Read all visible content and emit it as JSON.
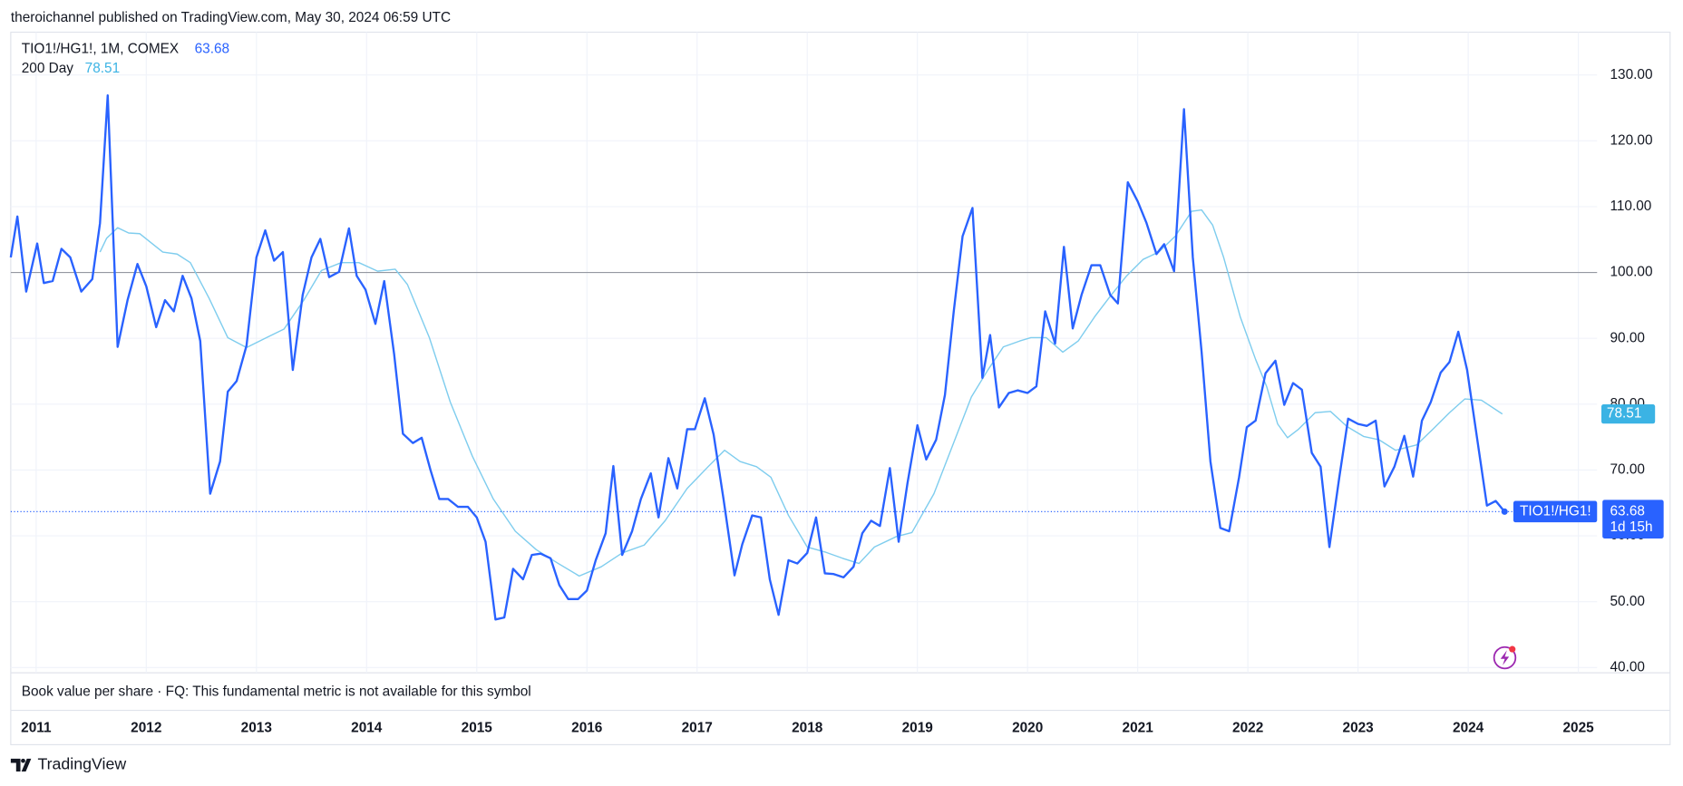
{
  "header": "theroichannel published on TradingView.com, May 30, 2024 06:59 UTC",
  "footer": "TradingView",
  "lower_pane": "Book value per share · FQ: This fundamental metric is not available for this symbol",
  "chart_data": {
    "type": "line",
    "symbol": "TIO1!/HG1!, 1M, COMEX",
    "short_symbol": "TIO1!/HG1!",
    "countdown": "1d 15h",
    "xlim": [
      2010.77,
      2025.17
    ],
    "ylim": [
      39.2,
      136.5
    ],
    "xticks": [
      2011,
      2012,
      2013,
      2014,
      2015,
      2016,
      2017,
      2018,
      2019,
      2020,
      2021,
      2022,
      2023,
      2024,
      2025
    ],
    "yticks": [
      {
        "value": 40,
        "label": "40.00"
      },
      {
        "value": 50,
        "label": "50.00"
      },
      {
        "value": 60,
        "label": "60.00"
      },
      {
        "value": 70,
        "label": "70.00"
      },
      {
        "value": 80,
        "label": "80.00"
      },
      {
        "value": 90,
        "label": "90.00"
      },
      {
        "value": 100,
        "label": "100.00"
      },
      {
        "value": 110,
        "label": "110.00"
      },
      {
        "value": 120,
        "label": "120.00"
      },
      {
        "value": 130,
        "label": "130.00"
      }
    ],
    "hline": 100,
    "grid": true,
    "series": [
      {
        "name": "TIO1!/HG1!",
        "color": "#2962ff",
        "x": [
          2010.77,
          2010.83,
          2010.91,
          2011.01,
          2011.07,
          2011.15,
          2011.23,
          2011.31,
          2011.41,
          2011.51,
          2011.58,
          2011.65,
          2011.74,
          2011.83,
          2011.92,
          2012.0,
          2012.09,
          2012.17,
          2012.25,
          2012.33,
          2012.41,
          2012.49,
          2012.58,
          2012.67,
          2012.74,
          2012.82,
          2012.91,
          2013.0,
          2013.08,
          2013.16,
          2013.24,
          2013.33,
          2013.42,
          2013.5,
          2013.58,
          2013.66,
          2013.75,
          2013.84,
          2013.91,
          2013.99,
          2014.08,
          2014.16,
          2014.25,
          2014.33,
          2014.42,
          2014.5,
          2014.58,
          2014.66,
          2014.74,
          2014.83,
          2014.92,
          2015.0,
          2015.08,
          2015.17,
          2015.25,
          2015.33,
          2015.42,
          2015.5,
          2015.58,
          2015.67,
          2015.75,
          2015.83,
          2015.92,
          2016.0,
          2016.08,
          2016.17,
          2016.24,
          2016.32,
          2016.41,
          2016.49,
          2016.58,
          2016.65,
          2016.74,
          2016.82,
          2016.91,
          2016.98,
          2017.07,
          2017.15,
          2017.24,
          2017.34,
          2017.41,
          2017.5,
          2017.58,
          2017.66,
          2017.74,
          2017.83,
          2017.91,
          2018.0,
          2018.08,
          2018.16,
          2018.24,
          2018.33,
          2018.42,
          2018.5,
          2018.58,
          2018.66,
          2018.75,
          2018.83,
          2018.91,
          2019.0,
          2019.08,
          2019.17,
          2019.25,
          2019.33,
          2019.41,
          2019.5,
          2019.59,
          2019.66,
          2019.74,
          2019.83,
          2019.91,
          2020.0,
          2020.08,
          2020.16,
          2020.25,
          2020.33,
          2020.41,
          2020.49,
          2020.58,
          2020.66,
          2020.75,
          2020.82,
          2020.91,
          2021.0,
          2021.08,
          2021.17,
          2021.24,
          2021.33,
          2021.42,
          2021.5,
          2021.58,
          2021.66,
          2021.75,
          2021.83,
          2021.92,
          2021.99,
          2022.07,
          2022.16,
          2022.25,
          2022.33,
          2022.41,
          2022.49,
          2022.58,
          2022.66,
          2022.74,
          2022.83,
          2022.91,
          2023.0,
          2023.08,
          2023.16,
          2023.24,
          2023.33,
          2023.42,
          2023.5,
          2023.58,
          2023.66,
          2023.75,
          2023.83,
          2023.91,
          2023.99,
          2024.08,
          2024.17,
          2024.25,
          2024.33
        ],
        "values": [
          102.3,
          108.5,
          97.1,
          104.4,
          98.4,
          98.7,
          103.6,
          102.3,
          97.1,
          99.0,
          107.5,
          126.9,
          88.7,
          95.8,
          101.3,
          97.9,
          91.7,
          95.8,
          94.1,
          99.5,
          96.1,
          89.6,
          66.4,
          71.3,
          81.9,
          83.5,
          88.9,
          102.3,
          106.4,
          101.8,
          103.1,
          85.2,
          96.6,
          102.3,
          105.1,
          99.3,
          100.1,
          106.7,
          99.5,
          97.4,
          92.2,
          98.7,
          87.6,
          75.5,
          74.1,
          74.9,
          70.0,
          65.6,
          65.6,
          64.4,
          64.4,
          62.8,
          59.1,
          47.3,
          47.6,
          55.0,
          53.4,
          57.1,
          57.3,
          56.6,
          52.5,
          50.4,
          50.4,
          51.7,
          56.3,
          60.4,
          70.6,
          57.1,
          60.7,
          65.6,
          69.5,
          62.8,
          71.8,
          67.2,
          76.2,
          76.2,
          80.9,
          75.4,
          65.6,
          54.0,
          58.7,
          63.1,
          62.8,
          53.4,
          48.0,
          56.3,
          55.8,
          57.4,
          62.8,
          54.3,
          54.2,
          53.7,
          55.3,
          60.4,
          62.3,
          61.5,
          70.3,
          59.1,
          68.0,
          76.8,
          71.6,
          74.6,
          81.4,
          94.1,
          105.5,
          109.8,
          84.0,
          90.5,
          79.5,
          81.7,
          82.1,
          81.7,
          82.7,
          94.1,
          89.2,
          103.9,
          91.5,
          96.6,
          101.1,
          101.1,
          96.6,
          95.3,
          113.7,
          110.8,
          107.5,
          102.8,
          104.3,
          100.2,
          124.8,
          102.3,
          87.9,
          71.3,
          61.2,
          60.7,
          68.9,
          76.5,
          77.5,
          84.7,
          86.6,
          79.9,
          83.2,
          82.2,
          72.6,
          70.5,
          58.3,
          68.9,
          77.8,
          77.0,
          76.7,
          77.5,
          67.5,
          70.5,
          75.2,
          69.0,
          77.5,
          80.3,
          84.8,
          86.4,
          91.0,
          85.2,
          74.9,
          64.6,
          65.3,
          63.68
        ]
      },
      {
        "name": "200 Day",
        "color": "#7fcdee",
        "label_color": "#3bb3e4",
        "x": [
          2011.58,
          2011.64,
          2011.74,
          2011.84,
          2011.94,
          2012.03,
          2012.15,
          2012.28,
          2012.4,
          2012.57,
          2012.74,
          2012.91,
          2013.09,
          2013.25,
          2013.43,
          2013.59,
          2013.77,
          2013.93,
          2014.1,
          2014.26,
          2014.37,
          2014.57,
          2014.76,
          2014.96,
          2015.15,
          2015.35,
          2015.54,
          2015.74,
          2015.93,
          2016.13,
          2016.32,
          2016.52,
          2016.71,
          2016.91,
          2017.1,
          2017.25,
          2017.39,
          2017.54,
          2017.67,
          2017.83,
          2018.0,
          2018.17,
          2018.32,
          2018.47,
          2018.61,
          2018.81,
          2018.95,
          2019.15,
          2019.34,
          2019.49,
          2019.64,
          2019.78,
          2019.93,
          2020.03,
          2020.17,
          2020.32,
          2020.46,
          2020.61,
          2020.76,
          2020.9,
          2021.05,
          2021.19,
          2021.34,
          2021.49,
          2021.58,
          2021.68,
          2021.78,
          2021.93,
          2022.07,
          2022.17,
          2022.27,
          2022.36,
          2022.46,
          2022.61,
          2022.75,
          2022.9,
          2023.05,
          2023.19,
          2023.34,
          2023.53,
          2023.68,
          2023.83,
          2023.97,
          2024.12,
          2024.31
        ],
        "values": [
          103.1,
          105.2,
          106.8,
          106.0,
          105.9,
          104.7,
          103.1,
          102.8,
          101.5,
          96.1,
          90.1,
          88.6,
          90.1,
          91.4,
          95.8,
          100.3,
          101.5,
          101.5,
          100.2,
          100.5,
          98.2,
          90.1,
          80.3,
          72.1,
          65.6,
          60.7,
          57.9,
          55.8,
          53.9,
          55.3,
          57.4,
          58.6,
          62.3,
          67.2,
          70.5,
          73.0,
          71.3,
          70.5,
          68.9,
          63.1,
          58.3,
          57.5,
          56.6,
          55.8,
          58.3,
          59.9,
          60.5,
          66.4,
          74.6,
          81.1,
          85.2,
          88.7,
          89.6,
          90.1,
          90.1,
          87.9,
          89.6,
          93.3,
          96.6,
          99.5,
          102.0,
          103.1,
          105.5,
          109.3,
          109.5,
          107.2,
          102.3,
          93.3,
          86.8,
          82.7,
          77.0,
          74.9,
          76.2,
          78.7,
          78.9,
          76.6,
          75.1,
          74.6,
          73.0,
          73.8,
          76.2,
          78.7,
          80.8,
          80.6,
          78.51
        ]
      }
    ]
  }
}
